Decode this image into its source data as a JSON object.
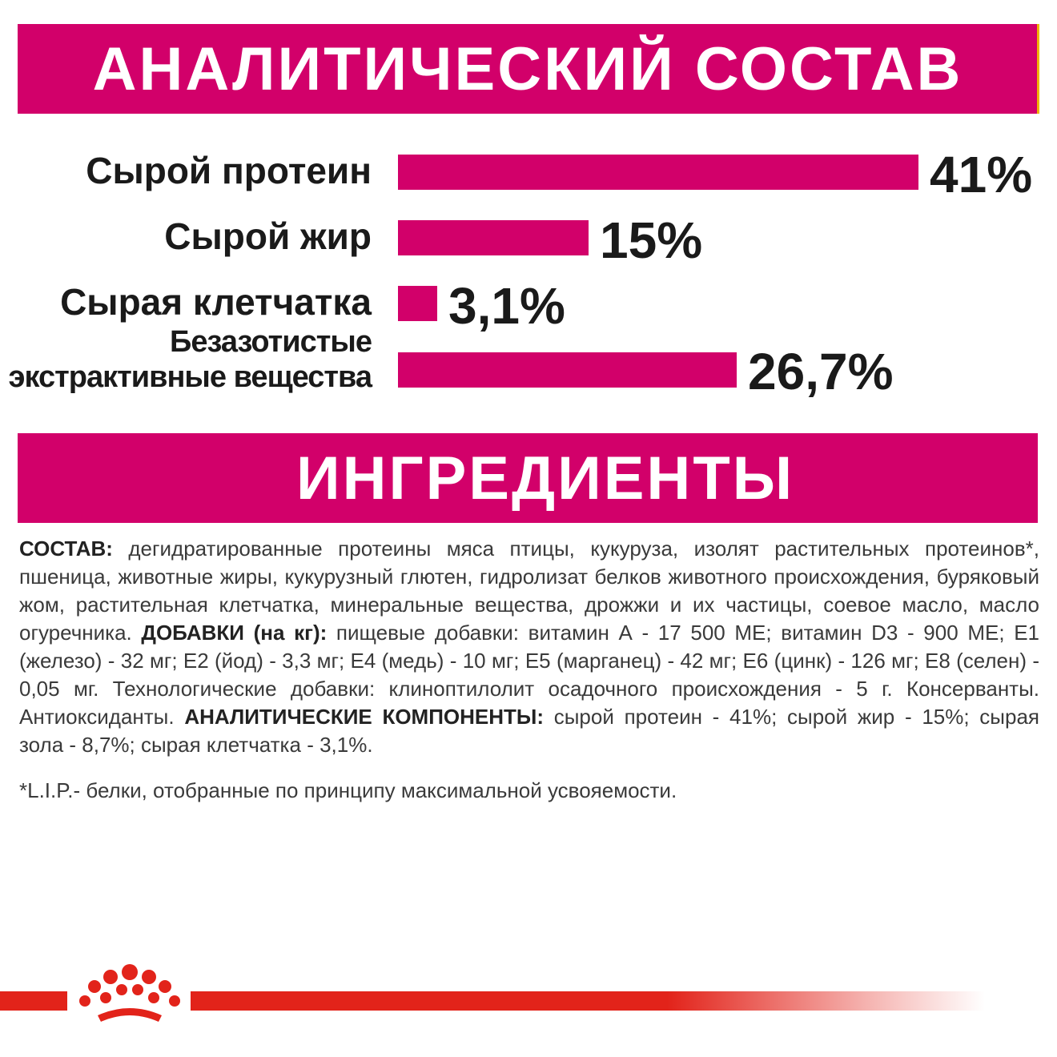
{
  "analytics_banner": {
    "title": "АНАЛИТИЧЕСКИЙ СОСТАВ"
  },
  "ingredients_banner": {
    "title": "ИНГРЕДИЕНТЫ"
  },
  "colors": {
    "brand_pink": "#d2006a",
    "brand_red": "#e2231a",
    "text_dark": "#1a1a1a"
  },
  "chart_data": {
    "type": "bar",
    "orientation": "horizontal",
    "categories": [
      "Сырой протеин",
      "Сырой жир",
      "Сырая клетчатка",
      "Безазотистые экстрактивные вещества"
    ],
    "category_lines": [
      [
        "Сырой протеин"
      ],
      [
        "Сырой жир"
      ],
      [
        "Сырая клетчатка"
      ],
      [
        "Безазотистые",
        "экстрактивные вещества"
      ]
    ],
    "values": [
      41,
      15,
      3.1,
      26.7
    ],
    "value_labels": [
      "41%",
      "15%",
      "3,1%",
      "26,7%"
    ],
    "unit": "%",
    "grid": false,
    "legend": "none"
  },
  "ingredients": {
    "composition_label": "СОСТАВ:",
    "composition_text": " дегидратированные протеины мяса птицы, кукуруза,  изолят растительных протеинов*, пшеница, животные жиры, кукурузный глютен, гидролизат белков животного происхождения, буряковый жом, растительная клетчатка, минеральные вещества, дрожжи и их частицы, соевое масло, масло огуречника. ",
    "additives_label": "ДОБАВКИ (на кг):",
    "additives_text": " пищевые добавки: витамин А - 17 500 МЕ; витамин D3 - 900 МЕ; Е1 (железо) - 32 мг; Е2 (йод) - 3,3 мг; Е4 (медь) - 10 мг; Е5 (марганец) - 42 мг; Е6 (цинк) - 126 мг; Е8 (селен) - 0,05 мг. Технологические добавки: клиноптилолит осадочного происхождения  - 5 г. Консерванты. Антиоксиданты. ",
    "analytic_label": "АНАЛИТИЧЕСКИЕ КОМПОНЕНТЫ:",
    "analytic_text": " сырой протеин - 41%; сырой жир - 15%; сырая зола - 8,7%; сырая клетчатка - 3,1%.",
    "footnote": "*L.I.P.- белки, отобранные по принципу максимальной усвояемости."
  },
  "footer": {
    "logo_icon": "crown-icon"
  }
}
